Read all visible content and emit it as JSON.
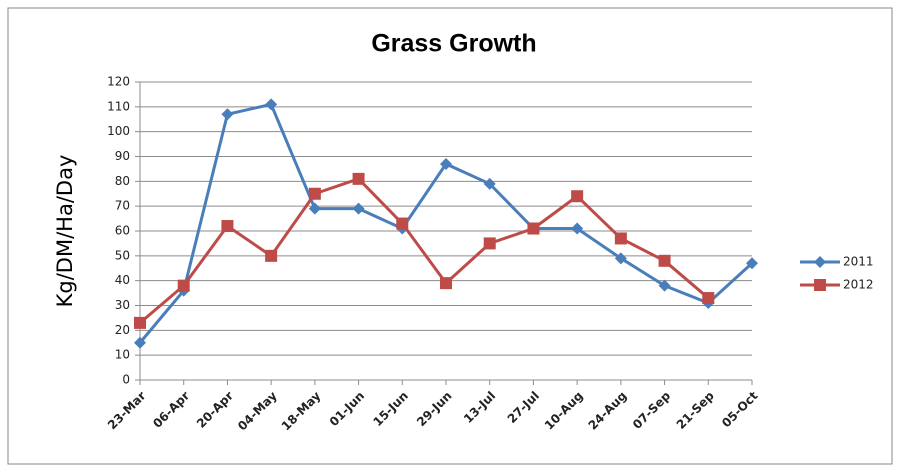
{
  "chart_data": {
    "type": "line",
    "title": "Grass Growth",
    "y_label": "Kg/DM/Ha/Day",
    "categories": [
      "23-Mar",
      "06-Apr",
      "20-Apr",
      "04-May",
      "18-May",
      "01-Jun",
      "15-Jun",
      "29-Jun",
      "13-Jul",
      "27-Jul",
      "10-Aug",
      "24-Aug",
      "07-Sep",
      "21-Sep",
      "05-Oct"
    ],
    "series": [
      {
        "name": "2011",
        "color": "#4a7ebb",
        "marker": "diamond",
        "values": [
          15,
          36,
          107,
          111,
          69,
          69,
          61,
          87,
          79,
          61,
          61,
          49,
          38,
          31,
          47
        ]
      },
      {
        "name": "2012",
        "color": "#be4b48",
        "marker": "square",
        "values": [
          23,
          38,
          62,
          50,
          75,
          81,
          63,
          39,
          55,
          61,
          74,
          57,
          48,
          33,
          null
        ]
      }
    ],
    "ylim": [
      0,
      120
    ],
    "yticks": [
      0,
      10,
      20,
      30,
      40,
      50,
      60,
      70,
      80,
      90,
      100,
      110,
      120
    ],
    "grid": true,
    "legend": "right"
  }
}
